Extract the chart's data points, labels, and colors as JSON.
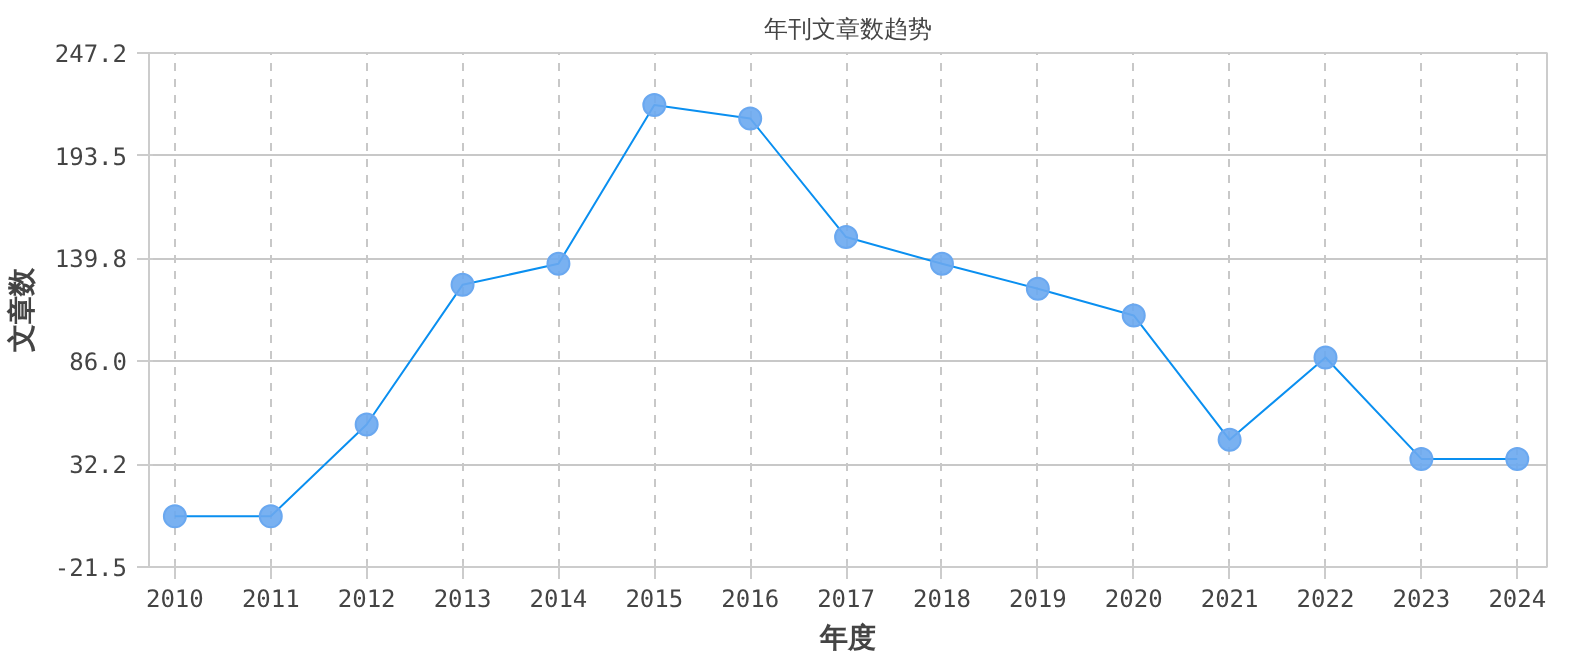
{
  "chart_data": {
    "type": "line",
    "title": "年刊文章数趋势",
    "xlabel": "年度",
    "ylabel": "文章数",
    "x": [
      2010,
      2011,
      2012,
      2013,
      2014,
      2015,
      2016,
      2017,
      2018,
      2019,
      2020,
      2021,
      2022,
      2023,
      2024
    ],
    "series": [
      {
        "color": "#0a8ff0",
        "values": [
          5,
          5,
          53,
          126,
          137,
          220,
          213,
          151,
          137,
          124,
          110,
          45,
          88,
          35,
          35
        ]
      }
    ],
    "xlim": [
      2009.73,
      2024.31
    ],
    "xticks": [
      2010,
      2011,
      2012,
      2013,
      2014,
      2015,
      2016,
      2017,
      2018,
      2019,
      2020,
      2021,
      2022,
      2023,
      2024
    ],
    "ylim": [
      -21.5,
      247.2
    ],
    "yticks": [
      {
        "value": -21.5,
        "label": "-21.5"
      },
      {
        "value": 32.2,
        "label": "32.2"
      },
      {
        "value": 86.0,
        "label": "86.0"
      },
      {
        "value": 139.8,
        "label": "139.8"
      },
      {
        "value": 193.5,
        "label": "193.5"
      },
      {
        "value": 247.2,
        "label": "247.2"
      }
    ],
    "grid": true,
    "marker": "circle",
    "line_style": "solid"
  }
}
